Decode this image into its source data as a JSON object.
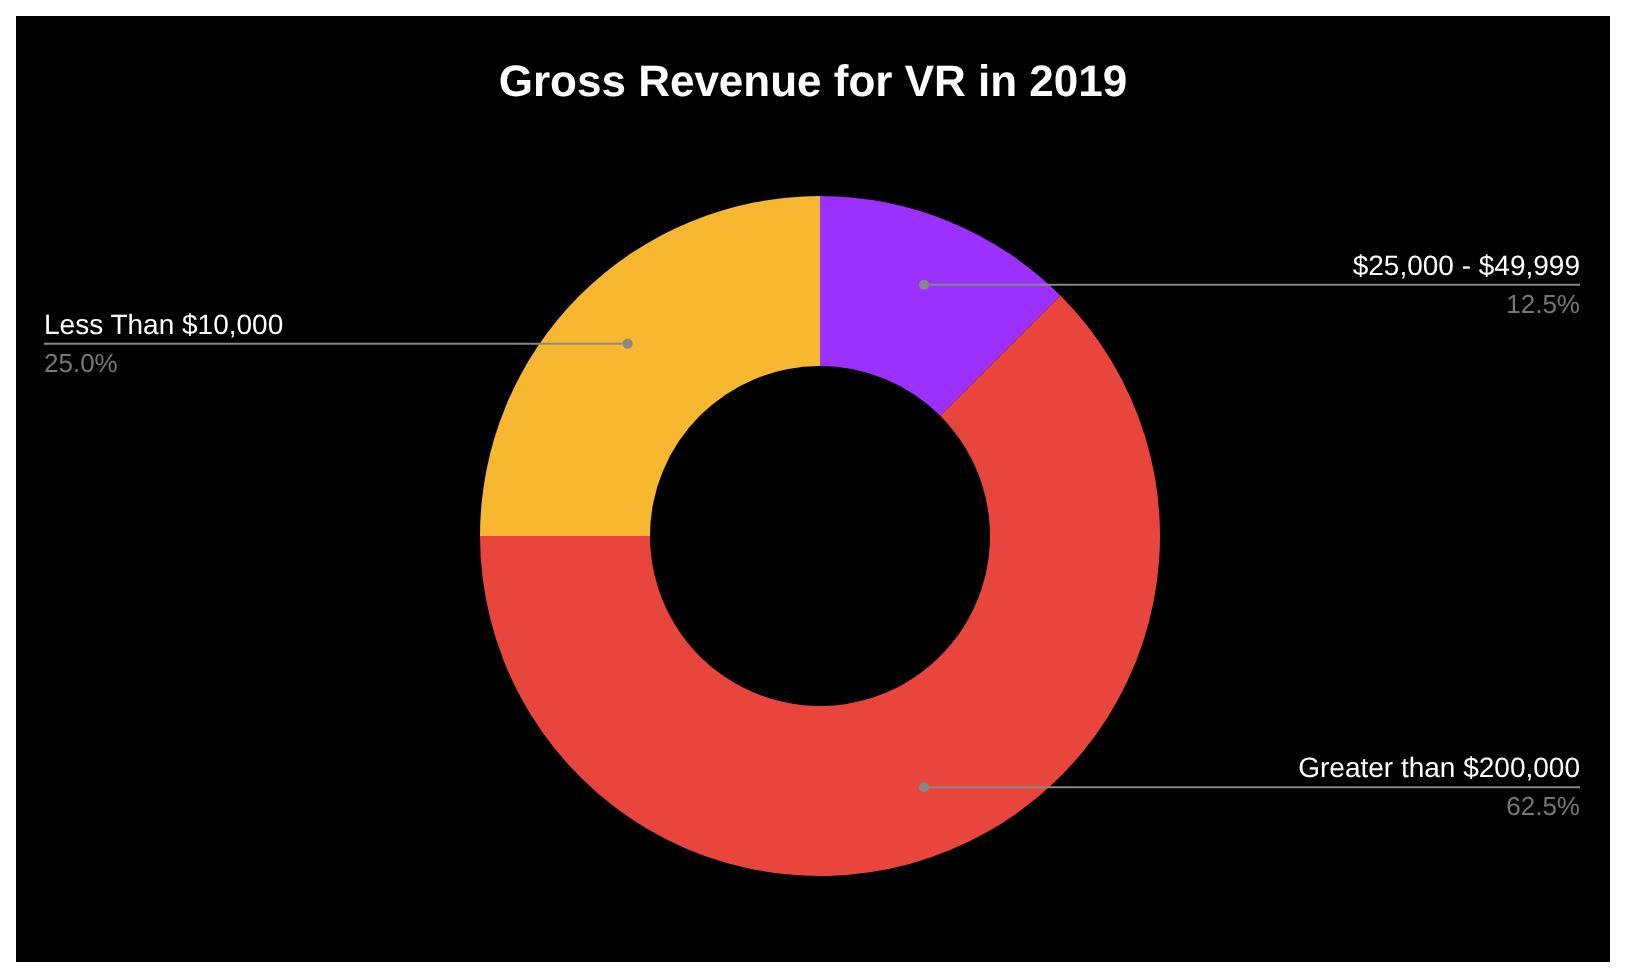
{
  "chart_data": {
    "type": "donut",
    "title": "Gross Revenue for VR in 2019",
    "categories": [
      "$25,000 - $49,999",
      "Greater than $200,000",
      "Less Than $10,000"
    ],
    "values": [
      12.5,
      62.5,
      25
    ],
    "colors": [
      "#9b30ff",
      "#e8453c",
      "#f7b731"
    ],
    "value_labels": [
      "12.5%",
      "62.5%",
      "25.0%"
    ]
  }
}
